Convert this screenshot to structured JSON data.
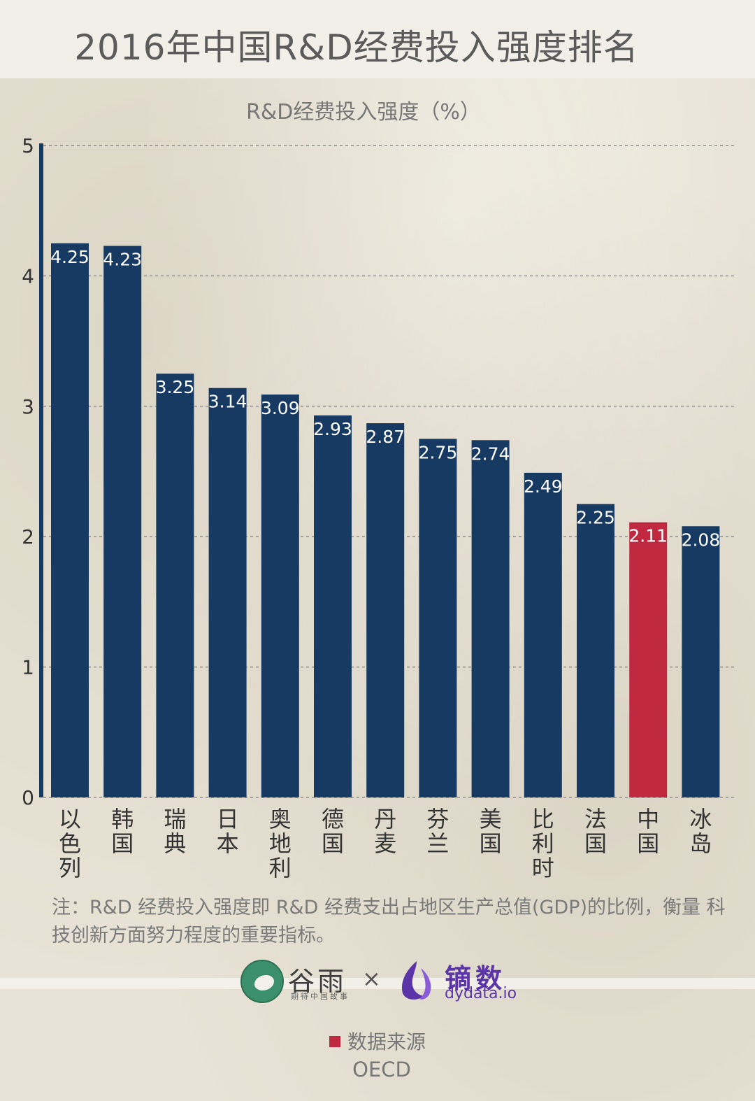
{
  "header": {
    "title": "2016年中国R&D经费投入强度排名"
  },
  "chart_data": {
    "type": "bar",
    "title": "2016年中国R&D经费投入强度排名",
    "ylabel": "R&D经费投入强度（%）",
    "xlabel": "",
    "ylim": [
      0,
      5
    ],
    "yticks": [
      0,
      1,
      2,
      3,
      4,
      5
    ],
    "grid": true,
    "categories": [
      "以色列",
      "韩国",
      "瑞典",
      "日本",
      "奥地利",
      "德国",
      "丹麦",
      "芬兰",
      "美国",
      "比利时",
      "法国",
      "中国",
      "冰岛"
    ],
    "values": [
      4.25,
      4.23,
      3.25,
      3.14,
      3.09,
      2.93,
      2.87,
      2.75,
      2.74,
      2.49,
      2.25,
      2.11,
      2.08
    ],
    "value_labels": [
      "4.25",
      "4.23",
      "3.25",
      "3.14",
      "3.09",
      "2.93",
      "2.87",
      "2.75",
      "2.74",
      "2.49",
      "2.25",
      "2.11",
      "2.08"
    ],
    "highlight": "中国",
    "colors": {
      "default": "#173a63",
      "highlight": "#c0293f"
    }
  },
  "note": {
    "text": "注：R&D 经费投入强度即 R&D 经费支出占地区生产总值(GDP)的比例，衡量 科技创新方面努力程度的重要指标。"
  },
  "logos": {
    "guyu_name": "谷雨",
    "guyu_slogan": "期待中国故事",
    "separator": "×",
    "dydata_name": "镝数",
    "dydata_url": "dydata.io"
  },
  "source": {
    "label": "数据来源",
    "value": "OECD"
  }
}
